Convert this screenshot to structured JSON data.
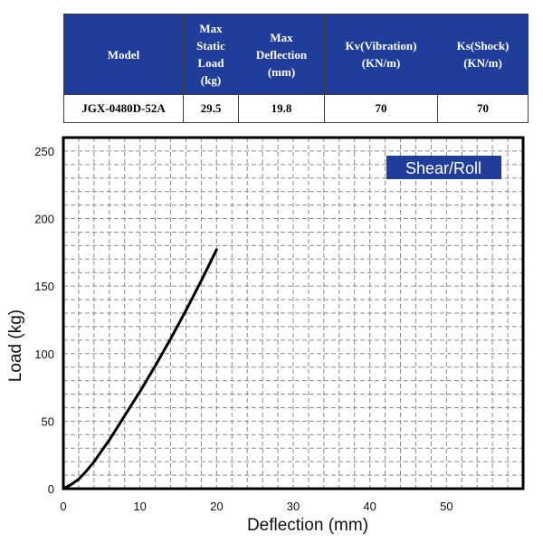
{
  "table": {
    "headers": [
      "Model",
      "Max Static Load (kg)",
      "Max Deflection (mm)",
      "Kv(Vibration) (KN/m)",
      "Ks(Shock) (KN/m)"
    ],
    "header_lines": [
      [
        "Model"
      ],
      [
        "Max",
        "Static",
        "Load",
        "(kg)"
      ],
      [
        "Max",
        "Deflection",
        "(mm)"
      ],
      [
        "Kv(Vibration)",
        "(KN/m)"
      ],
      [
        "Ks(Shock)",
        "(KN/m)"
      ]
    ],
    "row": [
      "JGX-0480D-52A",
      "29.5",
      "19.8",
      "70",
      "70"
    ],
    "header_bg": "#1f3d99"
  },
  "chart_data": {
    "type": "line",
    "xlabel": "Deflection (mm)",
    "ylabel": "Load (kg)",
    "xlim": [
      0,
      60
    ],
    "ylim": [
      0,
      260
    ],
    "xticks": [
      0,
      10,
      20,
      30,
      40,
      50
    ],
    "yticks": [
      0,
      50,
      100,
      150,
      200,
      250
    ],
    "grid": true,
    "legend_label": "Shear/Roll",
    "legend_position": "top-right",
    "legend_bg": "#1f3d99",
    "series": [
      {
        "color": "#000000",
        "x": [
          0,
          1,
          2,
          3,
          4,
          5,
          6,
          8,
          10,
          12,
          14,
          16,
          18,
          20
        ],
        "y": [
          0,
          3,
          7,
          13,
          20,
          28,
          36,
          54,
          72,
          91,
          111,
          132,
          154,
          177
        ]
      }
    ]
  }
}
